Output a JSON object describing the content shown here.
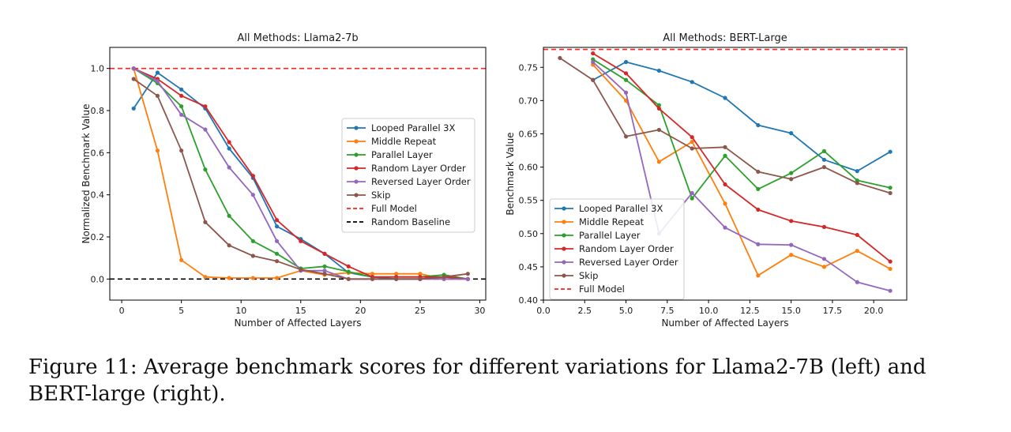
{
  "caption": "Figure 11: Average benchmark scores for different variations for Llama2-7B (left) and BERT-large (right).",
  "chart_data": [
    {
      "type": "line",
      "title": "All Methods: Llama2-7b",
      "xlabel": "Number of Affected Layers",
      "ylabel": "Normalized Benchmark Value",
      "xlim": [
        -1,
        30.5
      ],
      "ylim": [
        -0.1,
        1.1
      ],
      "xticks": [
        0,
        5,
        10,
        15,
        20,
        25,
        30
      ],
      "xtick_labels": [
        "0",
        "5",
        "10",
        "15",
        "20",
        "25",
        "30"
      ],
      "yticks": [
        0.0,
        0.2,
        0.4,
        0.6,
        0.8,
        1.0
      ],
      "ytick_labels": [
        "0.0",
        "0.2",
        "0.4",
        "0.6",
        "0.8",
        "1.0"
      ],
      "grid": false,
      "legend_position": "center-right",
      "series": [
        {
          "name": "Looped Parallel 3X",
          "color": "#1f77b4",
          "x": [
            1,
            3,
            5,
            7,
            9,
            11,
            13,
            15,
            17,
            19,
            21,
            23,
            25,
            27,
            29
          ],
          "y": [
            0.81,
            0.98,
            0.9,
            0.81,
            0.62,
            0.48,
            0.25,
            0.19,
            0.12,
            0.03,
            0.01,
            0.0,
            0.0,
            0.01,
            0.0
          ]
        },
        {
          "name": "Middle Repeat",
          "color": "#ff7f0e",
          "x": [
            1,
            3,
            5,
            7,
            9,
            11,
            13,
            15,
            17,
            19,
            21,
            23,
            25,
            27,
            29
          ],
          "y": [
            1.0,
            0.61,
            0.09,
            0.01,
            0.005,
            0.005,
            0.005,
            0.04,
            0.02,
            0.03,
            0.025,
            0.025,
            0.025,
            0.0,
            0.0
          ]
        },
        {
          "name": "Parallel Layer",
          "color": "#2ca02c",
          "x": [
            1,
            3,
            5,
            7,
            9,
            11,
            13,
            15,
            17,
            19,
            21,
            23,
            25,
            27,
            29
          ],
          "y": [
            1.0,
            0.93,
            0.82,
            0.52,
            0.3,
            0.18,
            0.12,
            0.05,
            0.06,
            0.035,
            0.01,
            0.01,
            0.01,
            0.02,
            0.0
          ]
        },
        {
          "name": "Random Layer Order",
          "color": "#d62728",
          "x": [
            1,
            3,
            5,
            7,
            9,
            11,
            13,
            15,
            17,
            19,
            21,
            23,
            25,
            27,
            29
          ],
          "y": [
            1.0,
            0.95,
            0.87,
            0.82,
            0.65,
            0.49,
            0.28,
            0.18,
            0.12,
            0.06,
            0.01,
            0.01,
            0.01,
            0.01,
            0.0
          ]
        },
        {
          "name": "Reversed Layer Order",
          "color": "#9467bd",
          "x": [
            1,
            3,
            5,
            7,
            9,
            11,
            13,
            15,
            17,
            19,
            21,
            23,
            25,
            27,
            29
          ],
          "y": [
            1.0,
            0.94,
            0.78,
            0.71,
            0.53,
            0.4,
            0.18,
            0.04,
            0.04,
            0.0,
            0.0,
            0.0,
            0.0,
            0.0,
            0.0
          ]
        },
        {
          "name": "Skip",
          "color": "#8c564b",
          "x": [
            1,
            3,
            5,
            7,
            9,
            11,
            13,
            15,
            17,
            19,
            21,
            23,
            25,
            27,
            29
          ],
          "y": [
            0.95,
            0.87,
            0.61,
            0.27,
            0.16,
            0.11,
            0.085,
            0.045,
            0.025,
            0.0,
            0.0,
            0.0,
            0.0,
            0.01,
            0.025
          ]
        }
      ],
      "reference_lines": [
        {
          "name": "Full Model",
          "y": 1.0,
          "color": "#ff2020"
        },
        {
          "name": "Random Baseline",
          "y": 0.0,
          "color": "#000000"
        }
      ]
    },
    {
      "type": "line",
      "title": "All Methods: BERT-Large",
      "xlabel": "Number of Affected Layers",
      "ylabel": "Benchmark Value",
      "xlim": [
        0,
        22
      ],
      "ylim": [
        0.4,
        0.78
      ],
      "xticks": [
        0,
        2.5,
        5,
        7.5,
        10,
        12.5,
        15,
        17.5,
        20
      ],
      "xtick_labels": [
        "0.0",
        "2.5",
        "5.0",
        "7.5",
        "10.0",
        "12.5",
        "15.0",
        "17.5",
        "20.0"
      ],
      "yticks": [
        0.4,
        0.45,
        0.5,
        0.55,
        0.6,
        0.65,
        0.7,
        0.75
      ],
      "ytick_labels": [
        "0.40",
        "0.45",
        "0.50",
        "0.55",
        "0.60",
        "0.65",
        "0.70",
        "0.75"
      ],
      "grid": false,
      "legend_position": "lower-left",
      "series": [
        {
          "name": "Looped Parallel 3X",
          "color": "#1f77b4",
          "x": [
            3,
            5,
            7,
            9,
            11,
            13,
            15,
            17,
            19,
            21
          ],
          "y": [
            0.731,
            0.758,
            0.745,
            0.728,
            0.704,
            0.663,
            0.651,
            0.611,
            0.594,
            0.623
          ]
        },
        {
          "name": "Middle Repeat",
          "color": "#ff7f0e",
          "x": [
            3,
            5,
            7,
            9,
            11,
            13,
            15,
            17,
            19,
            21
          ],
          "y": [
            0.754,
            0.7,
            0.608,
            0.638,
            0.545,
            0.437,
            0.468,
            0.45,
            0.474,
            0.447
          ]
        },
        {
          "name": "Parallel Layer",
          "color": "#2ca02c",
          "x": [
            3,
            5,
            7,
            9,
            11,
            13,
            15,
            17,
            19,
            21
          ],
          "y": [
            0.762,
            0.731,
            0.693,
            0.553,
            0.617,
            0.567,
            0.591,
            0.624,
            0.58,
            0.569
          ]
        },
        {
          "name": "Random Layer Order",
          "color": "#d62728",
          "x": [
            3,
            5,
            7,
            9,
            11,
            13,
            15,
            17,
            19,
            21
          ],
          "y": [
            0.771,
            0.741,
            0.688,
            0.645,
            0.574,
            0.536,
            0.519,
            0.51,
            0.498,
            0.458
          ]
        },
        {
          "name": "Reversed Layer Order",
          "color": "#9467bd",
          "x": [
            3,
            5,
            7,
            9,
            11,
            13,
            15,
            17,
            19,
            21
          ],
          "y": [
            0.758,
            0.712,
            0.5,
            0.561,
            0.509,
            0.484,
            0.483,
            0.462,
            0.427,
            0.414
          ]
        },
        {
          "name": "Skip",
          "color": "#8c564b",
          "x": [
            1,
            3,
            5,
            7,
            9,
            11,
            13,
            15,
            17,
            19,
            21
          ],
          "y": [
            0.764,
            0.731,
            0.646,
            0.656,
            0.628,
            0.63,
            0.593,
            0.582,
            0.6,
            0.576,
            0.561
          ]
        }
      ],
      "reference_lines": [
        {
          "name": "Full Model",
          "y": 0.777,
          "color": "#ff2020"
        }
      ]
    }
  ]
}
